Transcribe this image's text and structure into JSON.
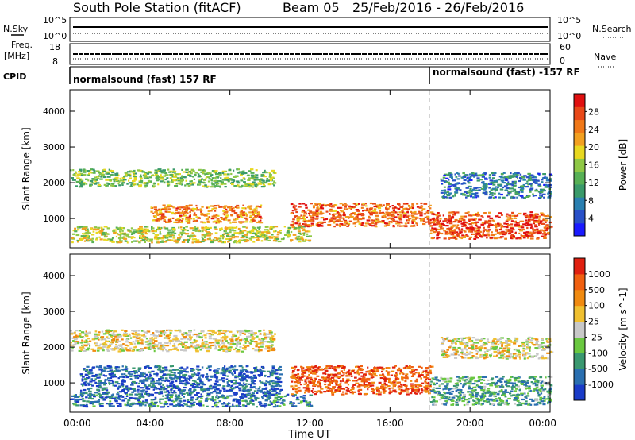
{
  "header": {
    "station": "South Pole Station (fitACF)",
    "beam": "Beam 05",
    "date_range": "25/Feb/2016 - 26/Feb/2016"
  },
  "summary_panels": {
    "nsky_label": "N.Sky",
    "nsearch_label": "N.Search",
    "nsky_ticks": [
      "10^5",
      "10^0"
    ],
    "nsearch_ticks": [
      "10^5",
      "10^0"
    ],
    "freq_label": "Freq.",
    "freq_unit": "[MHz]",
    "freq_ticks": [
      "18",
      "8"
    ],
    "nave_label": "Nave",
    "nave_ticks": [
      "60",
      "0"
    ],
    "cpid_label": "CPID",
    "cpid_mode_1": "normalsound (fast) 157 RF",
    "cpid_mode_2": "normalsound (fast) -157 RF"
  },
  "x_axis": {
    "label": "Time UT",
    "ticks": [
      "00:00",
      "04:00",
      "08:00",
      "12:00",
      "16:00",
      "20:00",
      "00:00"
    ]
  },
  "chart_data": [
    {
      "type": "heatmap",
      "quantity": "Power",
      "ylabel": "Slant Range [km]",
      "yticks": [
        1000,
        2000,
        3000,
        4000
      ],
      "ylim": [
        180,
        4600
      ],
      "xlim_hours": [
        0,
        24
      ],
      "colorbar_label": "Power [dB]",
      "colorbar_ticks": [
        "4",
        "8",
        "12",
        "16",
        "20",
        "24",
        "28"
      ],
      "colorbar_colors": [
        "#1a1aff",
        "#2850c8",
        "#2a7fb0",
        "#3a9a6a",
        "#57b055",
        "#8fc846",
        "#e8d820",
        "#f2a020",
        "#f07818",
        "#e84818",
        "#e01010"
      ],
      "bands": [
        {
          "t0": 0.0,
          "t1": 10.2,
          "r0": 1900,
          "r1": 2400,
          "level": 0.45
        },
        {
          "t0": 4.0,
          "t1": 9.5,
          "r0": 900,
          "r1": 1400,
          "level": 0.75
        },
        {
          "t0": 0.0,
          "t1": 12.0,
          "r0": 350,
          "r1": 800,
          "level": 0.55
        },
        {
          "t0": 11.0,
          "t1": 18.0,
          "r0": 800,
          "r1": 1450,
          "level": 0.8
        },
        {
          "t0": 18.0,
          "t1": 24.0,
          "r0": 450,
          "r1": 1200,
          "level": 0.85
        },
        {
          "t0": 18.5,
          "t1": 24.0,
          "r0": 1600,
          "r1": 2300,
          "level": 0.25
        }
      ]
    },
    {
      "type": "heatmap",
      "quantity": "Velocity",
      "ylabel": "Slant Range [km]",
      "yticks": [
        1000,
        2000,
        3000,
        4000
      ],
      "ylim": [
        180,
        4600
      ],
      "xlim_hours": [
        0,
        24
      ],
      "colorbar_label": "Velocity [m s^-1]",
      "colorbar_ticks": [
        "1000",
        "500",
        "100",
        "25",
        "-25",
        "-100",
        "-500",
        "-1000"
      ],
      "colorbar_colors": [
        "#1a3cc8",
        "#2a6fb0",
        "#3a9870",
        "#6ac840",
        "#c8c8c8",
        "#f0c030",
        "#f08a10",
        "#f06010",
        "#e02010"
      ],
      "bands": [
        {
          "t0": 0.0,
          "t1": 10.2,
          "r0": 1900,
          "r1": 2500,
          "level": 0.55
        },
        {
          "t0": 0.5,
          "t1": 10.5,
          "r0": 700,
          "r1": 1500,
          "level": 0.15
        },
        {
          "t0": 0.0,
          "t1": 12.0,
          "r0": 350,
          "r1": 700,
          "level": 0.2
        },
        {
          "t0": 11.0,
          "t1": 18.0,
          "r0": 700,
          "r1": 1500,
          "level": 0.85
        },
        {
          "t0": 18.0,
          "t1": 24.0,
          "r0": 400,
          "r1": 1200,
          "level": 0.3
        },
        {
          "t0": 18.5,
          "t1": 24.0,
          "r0": 1700,
          "r1": 2300,
          "level": 0.55
        }
      ]
    }
  ]
}
